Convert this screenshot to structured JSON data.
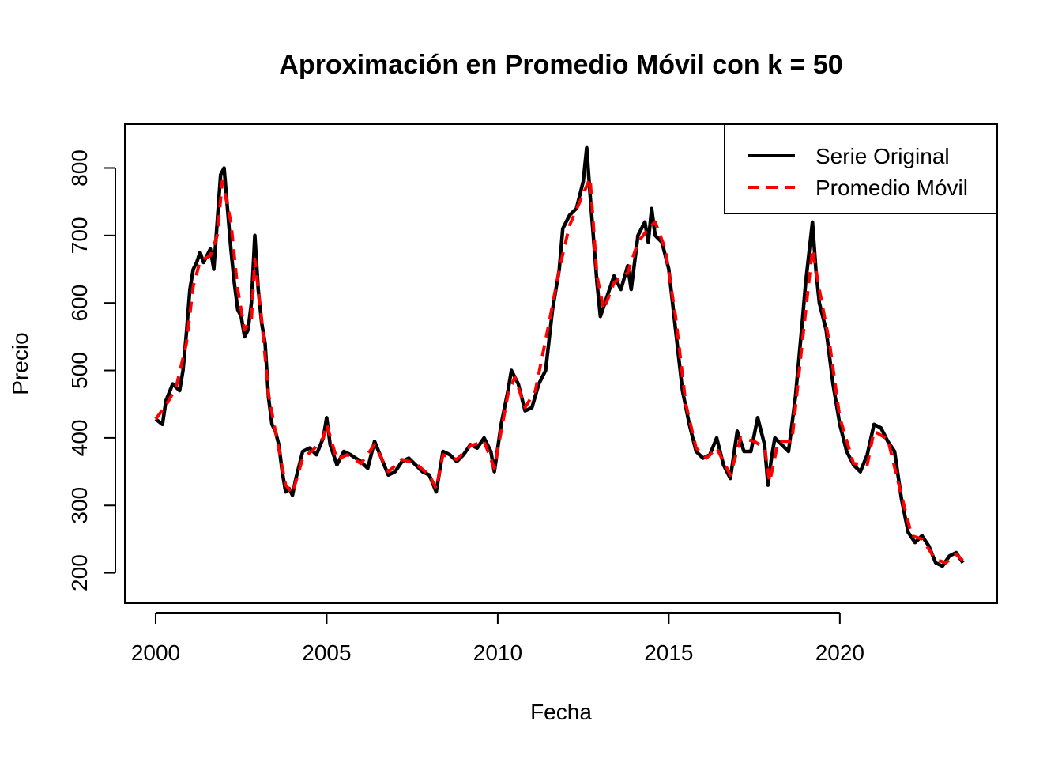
{
  "chart_data": {
    "type": "line",
    "title": "Aproximación en Promedio Móvil con k = 50",
    "xlabel": "Fecha",
    "ylabel": "Precio",
    "xlim": [
      1999.1,
      2024.6
    ],
    "ylim": [
      155,
      865
    ],
    "x_ticks": [
      2000,
      2005,
      2010,
      2015,
      2020
    ],
    "y_ticks": [
      200,
      300,
      400,
      500,
      600,
      700,
      800
    ],
    "grid": false,
    "legend_position": "top-right",
    "series": [
      {
        "name": "Serie Original",
        "color": "#000000",
        "style": "solid",
        "points": [
          [
            2000.0,
            428
          ],
          [
            2000.2,
            420
          ],
          [
            2000.3,
            455
          ],
          [
            2000.5,
            480
          ],
          [
            2000.7,
            470
          ],
          [
            2000.8,
            500
          ],
          [
            2000.9,
            555
          ],
          [
            2001.0,
            620
          ],
          [
            2001.1,
            650
          ],
          [
            2001.2,
            660
          ],
          [
            2001.3,
            675
          ],
          [
            2001.4,
            660
          ],
          [
            2001.5,
            670
          ],
          [
            2001.6,
            680
          ],
          [
            2001.7,
            650
          ],
          [
            2001.8,
            720
          ],
          [
            2001.9,
            790
          ],
          [
            2002.0,
            800
          ],
          [
            2002.1,
            740
          ],
          [
            2002.2,
            680
          ],
          [
            2002.3,
            630
          ],
          [
            2002.4,
            590
          ],
          [
            2002.5,
            580
          ],
          [
            2002.6,
            550
          ],
          [
            2002.7,
            560
          ],
          [
            2002.8,
            600
          ],
          [
            2002.9,
            700
          ],
          [
            2003.0,
            620
          ],
          [
            2003.1,
            570
          ],
          [
            2003.2,
            540
          ],
          [
            2003.3,
            460
          ],
          [
            2003.4,
            420
          ],
          [
            2003.5,
            410
          ],
          [
            2003.6,
            390
          ],
          [
            2003.7,
            350
          ],
          [
            2003.8,
            320
          ],
          [
            2003.9,
            325
          ],
          [
            2004.0,
            315
          ],
          [
            2004.1,
            340
          ],
          [
            2004.3,
            380
          ],
          [
            2004.5,
            385
          ],
          [
            2004.7,
            375
          ],
          [
            2004.9,
            400
          ],
          [
            2005.0,
            430
          ],
          [
            2005.1,
            390
          ],
          [
            2005.3,
            360
          ],
          [
            2005.5,
            380
          ],
          [
            2005.7,
            375
          ],
          [
            2006.0,
            365
          ],
          [
            2006.2,
            355
          ],
          [
            2006.4,
            395
          ],
          [
            2006.6,
            370
          ],
          [
            2006.8,
            345
          ],
          [
            2007.0,
            350
          ],
          [
            2007.2,
            365
          ],
          [
            2007.4,
            370
          ],
          [
            2007.6,
            360
          ],
          [
            2007.8,
            350
          ],
          [
            2008.0,
            345
          ],
          [
            2008.2,
            320
          ],
          [
            2008.4,
            380
          ],
          [
            2008.6,
            375
          ],
          [
            2008.8,
            365
          ],
          [
            2009.0,
            375
          ],
          [
            2009.2,
            390
          ],
          [
            2009.4,
            385
          ],
          [
            2009.6,
            400
          ],
          [
            2009.8,
            380
          ],
          [
            2009.9,
            350
          ],
          [
            2010.1,
            420
          ],
          [
            2010.3,
            470
          ],
          [
            2010.4,
            500
          ],
          [
            2010.6,
            480
          ],
          [
            2010.8,
            440
          ],
          [
            2011.0,
            445
          ],
          [
            2011.2,
            480
          ],
          [
            2011.4,
            500
          ],
          [
            2011.6,
            590
          ],
          [
            2011.8,
            650
          ],
          [
            2011.9,
            710
          ],
          [
            2012.1,
            730
          ],
          [
            2012.3,
            740
          ],
          [
            2012.5,
            780
          ],
          [
            2012.6,
            830
          ],
          [
            2012.7,
            760
          ],
          [
            2012.9,
            630
          ],
          [
            2013.0,
            580
          ],
          [
            2013.2,
            610
          ],
          [
            2013.4,
            640
          ],
          [
            2013.6,
            620
          ],
          [
            2013.8,
            655
          ],
          [
            2013.9,
            620
          ],
          [
            2014.1,
            700
          ],
          [
            2014.3,
            720
          ],
          [
            2014.4,
            690
          ],
          [
            2014.5,
            740
          ],
          [
            2014.6,
            700
          ],
          [
            2014.8,
            690
          ],
          [
            2015.0,
            650
          ],
          [
            2015.2,
            560
          ],
          [
            2015.4,
            470
          ],
          [
            2015.6,
            420
          ],
          [
            2015.8,
            380
          ],
          [
            2016.0,
            370
          ],
          [
            2016.2,
            375
          ],
          [
            2016.4,
            400
          ],
          [
            2016.6,
            360
          ],
          [
            2016.8,
            340
          ],
          [
            2017.0,
            410
          ],
          [
            2017.2,
            380
          ],
          [
            2017.4,
            380
          ],
          [
            2017.6,
            430
          ],
          [
            2017.8,
            390
          ],
          [
            2017.9,
            330
          ],
          [
            2018.0,
            370
          ],
          [
            2018.1,
            400
          ],
          [
            2018.3,
            390
          ],
          [
            2018.5,
            380
          ],
          [
            2018.7,
            460
          ],
          [
            2018.9,
            570
          ],
          [
            2019.0,
            630
          ],
          [
            2019.2,
            720
          ],
          [
            2019.3,
            650
          ],
          [
            2019.4,
            600
          ],
          [
            2019.6,
            560
          ],
          [
            2019.8,
            480
          ],
          [
            2020.0,
            420
          ],
          [
            2020.2,
            380
          ],
          [
            2020.4,
            360
          ],
          [
            2020.6,
            350
          ],
          [
            2020.8,
            375
          ],
          [
            2021.0,
            420
          ],
          [
            2021.2,
            415
          ],
          [
            2021.4,
            395
          ],
          [
            2021.6,
            380
          ],
          [
            2021.8,
            310
          ],
          [
            2022.0,
            260
          ],
          [
            2022.2,
            245
          ],
          [
            2022.4,
            255
          ],
          [
            2022.6,
            240
          ],
          [
            2022.8,
            215
          ],
          [
            2023.0,
            210
          ],
          [
            2023.2,
            225
          ],
          [
            2023.4,
            230
          ],
          [
            2023.6,
            215
          ]
        ]
      },
      {
        "name": "Promedio Móvil",
        "color": "#ff0000",
        "style": "dashed",
        "points": [
          [
            2000.0,
            428
          ],
          [
            2000.3,
            448
          ],
          [
            2000.6,
            475
          ],
          [
            2000.9,
            540
          ],
          [
            2001.1,
            625
          ],
          [
            2001.3,
            662
          ],
          [
            2001.6,
            670
          ],
          [
            2001.8,
            700
          ],
          [
            2001.95,
            780
          ],
          [
            2002.2,
            720
          ],
          [
            2002.4,
            620
          ],
          [
            2002.6,
            560
          ],
          [
            2002.8,
            575
          ],
          [
            2002.9,
            665
          ],
          [
            2003.1,
            575
          ],
          [
            2003.3,
            465
          ],
          [
            2003.5,
            410
          ],
          [
            2003.8,
            330
          ],
          [
            2004.0,
            318
          ],
          [
            2004.3,
            370
          ],
          [
            2004.6,
            382
          ],
          [
            2004.9,
            400
          ],
          [
            2005.0,
            420
          ],
          [
            2005.3,
            368
          ],
          [
            2005.6,
            375
          ],
          [
            2006.0,
            362
          ],
          [
            2006.4,
            390
          ],
          [
            2006.8,
            350
          ],
          [
            2007.2,
            368
          ],
          [
            2007.6,
            362
          ],
          [
            2008.0,
            345
          ],
          [
            2008.2,
            325
          ],
          [
            2008.4,
            375
          ],
          [
            2008.8,
            368
          ],
          [
            2009.2,
            388
          ],
          [
            2009.6,
            395
          ],
          [
            2009.9,
            355
          ],
          [
            2010.3,
            465
          ],
          [
            2010.5,
            490
          ],
          [
            2010.8,
            445
          ],
          [
            2011.1,
            470
          ],
          [
            2011.5,
            570
          ],
          [
            2011.8,
            650
          ],
          [
            2012.1,
            715
          ],
          [
            2012.4,
            750
          ],
          [
            2012.7,
            785
          ],
          [
            2012.9,
            640
          ],
          [
            2013.1,
            590
          ],
          [
            2013.4,
            630
          ],
          [
            2013.8,
            645
          ],
          [
            2014.1,
            690
          ],
          [
            2014.4,
            710
          ],
          [
            2014.6,
            720
          ],
          [
            2014.9,
            680
          ],
          [
            2015.2,
            580
          ],
          [
            2015.5,
            450
          ],
          [
            2015.8,
            385
          ],
          [
            2016.1,
            370
          ],
          [
            2016.4,
            385
          ],
          [
            2016.8,
            345
          ],
          [
            2017.1,
            400
          ],
          [
            2017.5,
            395
          ],
          [
            2017.8,
            385
          ],
          [
            2017.95,
            335
          ],
          [
            2018.2,
            395
          ],
          [
            2018.6,
            395
          ],
          [
            2018.9,
            540
          ],
          [
            2019.2,
            680
          ],
          [
            2019.4,
            620
          ],
          [
            2019.7,
            540
          ],
          [
            2020.0,
            430
          ],
          [
            2020.4,
            362
          ],
          [
            2020.8,
            360
          ],
          [
            2021.0,
            410
          ],
          [
            2021.4,
            398
          ],
          [
            2021.8,
            315
          ],
          [
            2022.1,
            255
          ],
          [
            2022.4,
            250
          ],
          [
            2022.8,
            220
          ],
          [
            2023.1,
            215
          ],
          [
            2023.4,
            228
          ],
          [
            2023.6,
            218
          ]
        ]
      }
    ]
  }
}
